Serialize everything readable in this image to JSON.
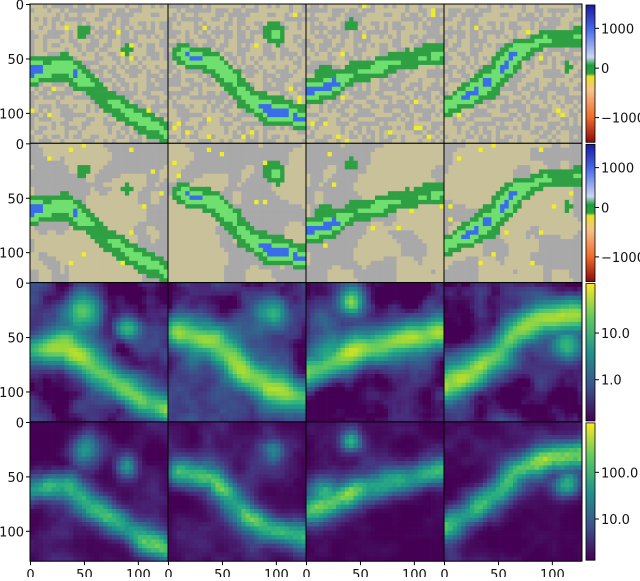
{
  "chart_data": {
    "type": "heatmap",
    "layout": {
      "rows": 4,
      "cols": 4
    },
    "x_ticks": [
      "0",
      "50",
      "100",
      "0",
      "50",
      "100",
      "0",
      "50",
      "100",
      "0",
      "50",
      "100"
    ],
    "y_tick_labels": [
      "0",
      "50",
      "100"
    ],
    "x_range": [
      0,
      127
    ],
    "y_range": [
      0,
      127
    ],
    "rows": [
      {
        "row": 1,
        "colormap": "diverging-categorical",
        "colorbar_ticks": [
          "1000",
          "0",
          "−1000"
        ],
        "colors": {
          "background": "#a9a9a9",
          "beige": "#c8c19a",
          "yellow": "#eded2a",
          "green": "#2ea043",
          "light_green": "#6fe06f",
          "blue": "#3a6de8",
          "red": "#c81e1e"
        }
      },
      {
        "row": 2,
        "colormap": "diverging-categorical",
        "colorbar_ticks": [
          "1000",
          "0",
          "−1000"
        ],
        "colors": {
          "background": "#a9a9a9",
          "beige": "#c8c19a",
          "yellow": "#eded2a",
          "green": "#2ea043",
          "light_green": "#6fe06f",
          "blue": "#3a6de8",
          "red": "#c81e1e"
        }
      },
      {
        "row": 3,
        "colormap": "viridis",
        "scale": "log",
        "colorbar_ticks": [
          "10.0",
          "1.0"
        ]
      },
      {
        "row": 4,
        "colormap": "viridis",
        "scale": "log",
        "colorbar_ticks": [
          "100.0",
          "10.0"
        ]
      }
    ]
  }
}
